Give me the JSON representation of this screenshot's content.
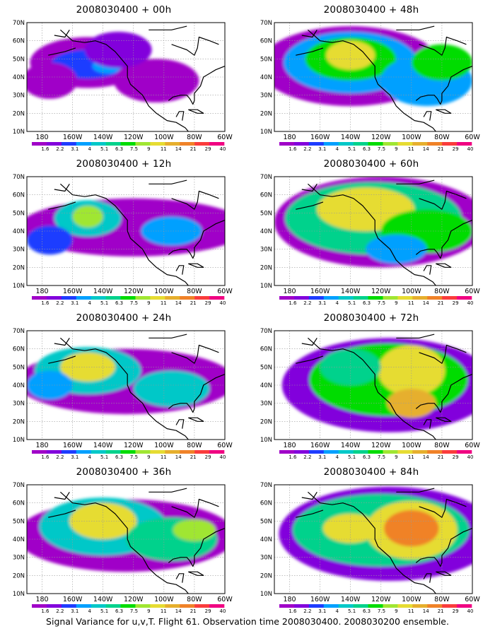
{
  "panels": [
    {
      "title": "2008030400 + 00h",
      "col": 0,
      "row": 0
    },
    {
      "title": "2008030400 + 48h",
      "col": 1,
      "row": 0
    },
    {
      "title": "2008030400 + 12h",
      "col": 0,
      "row": 1
    },
    {
      "title": "2008030400 + 60h",
      "col": 1,
      "row": 1
    },
    {
      "title": "2008030400 + 24h",
      "col": 0,
      "row": 2
    },
    {
      "title": "2008030400 + 72h",
      "col": 1,
      "row": 2
    },
    {
      "title": "2008030400 + 36h",
      "col": 0,
      "row": 3
    },
    {
      "title": "2008030400 + 84h",
      "col": 1,
      "row": 3
    }
  ],
  "lat_labels": [
    "70N",
    "60N",
    "50N",
    "40N",
    "30N",
    "20N",
    "10N"
  ],
  "lon_labels": [
    "180",
    "160W",
    "140W",
    "120W",
    "100W",
    "80W",
    "60W"
  ],
  "colorbar": {
    "levels": [
      "1.6",
      "2.2",
      "3.1",
      "4",
      "5.1",
      "6.3",
      "7.5",
      "9",
      "11",
      "14",
      "21",
      "29",
      "40"
    ],
    "colors": [
      "#a000c8",
      "#8200dc",
      "#1e3cff",
      "#00a0ff",
      "#00c8c8",
      "#00d28c",
      "#00dc00",
      "#a0e632",
      "#e6dc32",
      "#e6af2d",
      "#f08228",
      "#fa3c3c",
      "#f00082"
    ]
  },
  "footer": "Signal Variance for u,v,T. Flight 61. Observation time 2008030400. 2008030200 ensemble."
}
